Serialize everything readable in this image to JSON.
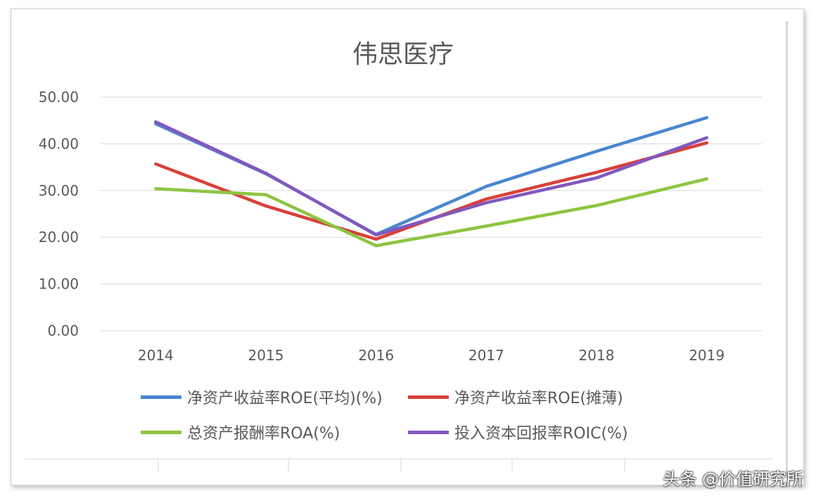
{
  "chart_data": {
    "type": "line",
    "title": "伟思医疗",
    "categories": [
      "2014",
      "2015",
      "2016",
      "2017",
      "2018",
      "2019"
    ],
    "ylim": [
      0,
      50
    ],
    "yticks": [
      "0.00",
      "10.00",
      "20.00",
      "30.00",
      "40.00",
      "50.00"
    ],
    "grid": true,
    "legend": "bottom",
    "series": [
      {
        "name": "净资产收益率ROE(平均)(%)",
        "color": "#4a86d0",
        "values": [
          44.3,
          33.6,
          20.6,
          30.9,
          38.4,
          45.6
        ]
      },
      {
        "name": "净资产收益率ROE(摊薄)",
        "color": "#d9403a",
        "values": [
          35.7,
          26.7,
          19.6,
          28.2,
          33.9,
          40.2
        ]
      },
      {
        "name": "总资产报酬率ROA(%)",
        "color": "#8dc540",
        "values": [
          30.4,
          29.1,
          18.2,
          22.4,
          26.8,
          32.5
        ]
      },
      {
        "name": "投入资本回报率ROIC(%)",
        "color": "#8258bd",
        "values": [
          44.7,
          33.7,
          20.5,
          27.4,
          32.7,
          41.3
        ]
      }
    ]
  },
  "watermark": "头条 @价值研究所"
}
